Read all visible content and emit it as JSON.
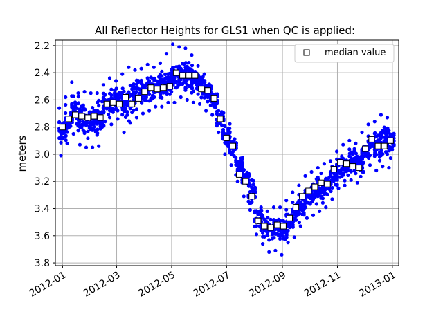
{
  "chart_data": {
    "type": "scatter",
    "title": "All Reflector Heights for GLS1 when QC is applied:",
    "xlabel": "",
    "ylabel": "meters",
    "y_inverted": true,
    "ylim": [
      3.82,
      2.16
    ],
    "xlim": [
      "2011-12-24",
      "2013-01-08"
    ],
    "grid": true,
    "legend_position": "top-right",
    "y_ticks": [
      "2.2",
      "2.4",
      "2.6",
      "2.8",
      "3.0",
      "3.2",
      "3.4",
      "3.6",
      "3.8"
    ],
    "y_tick_values": [
      2.2,
      2.4,
      2.6,
      2.8,
      3.0,
      3.2,
      3.4,
      3.6,
      3.8
    ],
    "x_ticks": [
      "2012-01",
      "2012-03",
      "2012-05",
      "2012-07",
      "2012-09",
      "2012-11",
      "2013-01"
    ],
    "x_tick_dates": [
      "2012-01-01",
      "2012-03-01",
      "2012-05-01",
      "2012-07-01",
      "2012-09-01",
      "2012-11-01",
      "2013-01-01"
    ],
    "series": [
      {
        "name": "",
        "color": "#0000ff",
        "marker": "dot",
        "x": [
          "2012-01-01",
          "2012-01-08",
          "2012-01-15",
          "2012-01-22",
          "2012-01-29",
          "2012-02-05",
          "2012-02-12",
          "2012-02-19",
          "2012-02-26",
          "2012-03-04",
          "2012-03-11",
          "2012-03-18",
          "2012-03-25",
          "2012-04-01",
          "2012-04-08",
          "2012-04-15",
          "2012-04-22",
          "2012-04-29",
          "2012-05-06",
          "2012-05-13",
          "2012-05-20",
          "2012-05-27",
          "2012-06-03",
          "2012-06-10",
          "2012-06-17",
          "2012-06-24",
          "2012-07-01",
          "2012-07-08",
          "2012-07-15",
          "2012-07-22",
          "2012-07-29",
          "2012-08-05",
          "2012-08-12",
          "2012-08-19",
          "2012-08-26",
          "2012-09-02",
          "2012-09-09",
          "2012-09-16",
          "2012-09-23",
          "2012-09-30",
          "2012-10-07",
          "2012-10-14",
          "2012-10-21",
          "2012-10-28",
          "2012-11-04",
          "2012-11-11",
          "2012-11-18",
          "2012-11-25",
          "2012-12-02",
          "2012-12-09",
          "2012-12-16",
          "2012-12-23",
          "2012-12-30"
        ],
        "y_min": [
          3.01,
          2.92,
          2.85,
          2.93,
          2.95,
          2.95,
          2.94,
          2.76,
          2.78,
          2.74,
          2.84,
          2.77,
          2.73,
          2.7,
          2.68,
          2.65,
          2.65,
          2.62,
          2.62,
          2.58,
          2.6,
          2.62,
          2.63,
          2.68,
          2.71,
          2.84,
          3.0,
          3.08,
          3.2,
          3.31,
          3.41,
          3.59,
          3.66,
          3.72,
          3.71,
          3.74,
          3.65,
          3.61,
          3.53,
          3.47,
          3.45,
          3.42,
          3.39,
          3.33,
          3.25,
          3.23,
          3.19,
          3.21,
          3.13,
          3.08,
          3.12,
          3.09,
          3.1
        ],
        "y_max": [
          2.66,
          2.58,
          2.47,
          2.55,
          2.54,
          2.55,
          2.55,
          2.49,
          2.44,
          2.46,
          2.41,
          2.36,
          2.38,
          2.37,
          2.34,
          2.36,
          2.33,
          2.26,
          2.19,
          2.21,
          2.22,
          2.27,
          2.35,
          2.41,
          2.5,
          2.62,
          2.72,
          2.81,
          2.94,
          3.04,
          3.14,
          3.32,
          3.39,
          3.42,
          3.39,
          3.39,
          3.34,
          3.28,
          3.23,
          3.16,
          3.13,
          3.1,
          3.07,
          3.05,
          2.98,
          2.93,
          2.9,
          2.92,
          2.84,
          2.78,
          2.76,
          2.71,
          2.73
        ]
      },
      {
        "name": "median value",
        "marker": "square",
        "x": [
          "2012-01-01",
          "2012-01-08",
          "2012-01-15",
          "2012-01-22",
          "2012-01-29",
          "2012-02-05",
          "2012-02-12",
          "2012-02-19",
          "2012-02-26",
          "2012-03-04",
          "2012-03-11",
          "2012-03-18",
          "2012-03-25",
          "2012-04-01",
          "2012-04-08",
          "2012-04-15",
          "2012-04-22",
          "2012-04-29",
          "2012-05-06",
          "2012-05-13",
          "2012-05-20",
          "2012-05-27",
          "2012-06-03",
          "2012-06-10",
          "2012-06-17",
          "2012-06-24",
          "2012-07-01",
          "2012-07-08",
          "2012-07-15",
          "2012-07-22",
          "2012-07-29",
          "2012-08-05",
          "2012-08-12",
          "2012-08-19",
          "2012-08-26",
          "2012-09-02",
          "2012-09-09",
          "2012-09-16",
          "2012-09-23",
          "2012-09-30",
          "2012-10-07",
          "2012-10-14",
          "2012-10-21",
          "2012-10-28",
          "2012-11-04",
          "2012-11-11",
          "2012-11-18",
          "2012-11-25",
          "2012-12-02",
          "2012-12-09",
          "2012-12-16",
          "2012-12-23",
          "2012-12-30"
        ],
        "values": [
          2.8,
          2.74,
          2.71,
          2.72,
          2.73,
          2.72,
          2.73,
          2.63,
          2.62,
          2.63,
          2.58,
          2.63,
          2.59,
          2.54,
          2.51,
          2.52,
          2.51,
          2.5,
          2.4,
          2.42,
          2.42,
          2.42,
          2.52,
          2.53,
          2.59,
          2.74,
          2.88,
          2.94,
          3.15,
          3.2,
          3.31,
          3.49,
          3.53,
          3.54,
          3.52,
          3.53,
          3.47,
          3.39,
          3.31,
          3.27,
          3.24,
          3.21,
          3.22,
          3.11,
          3.06,
          3.07,
          3.09,
          3.1,
          2.96,
          2.89,
          2.94,
          2.94,
          2.9
        ]
      }
    ]
  }
}
